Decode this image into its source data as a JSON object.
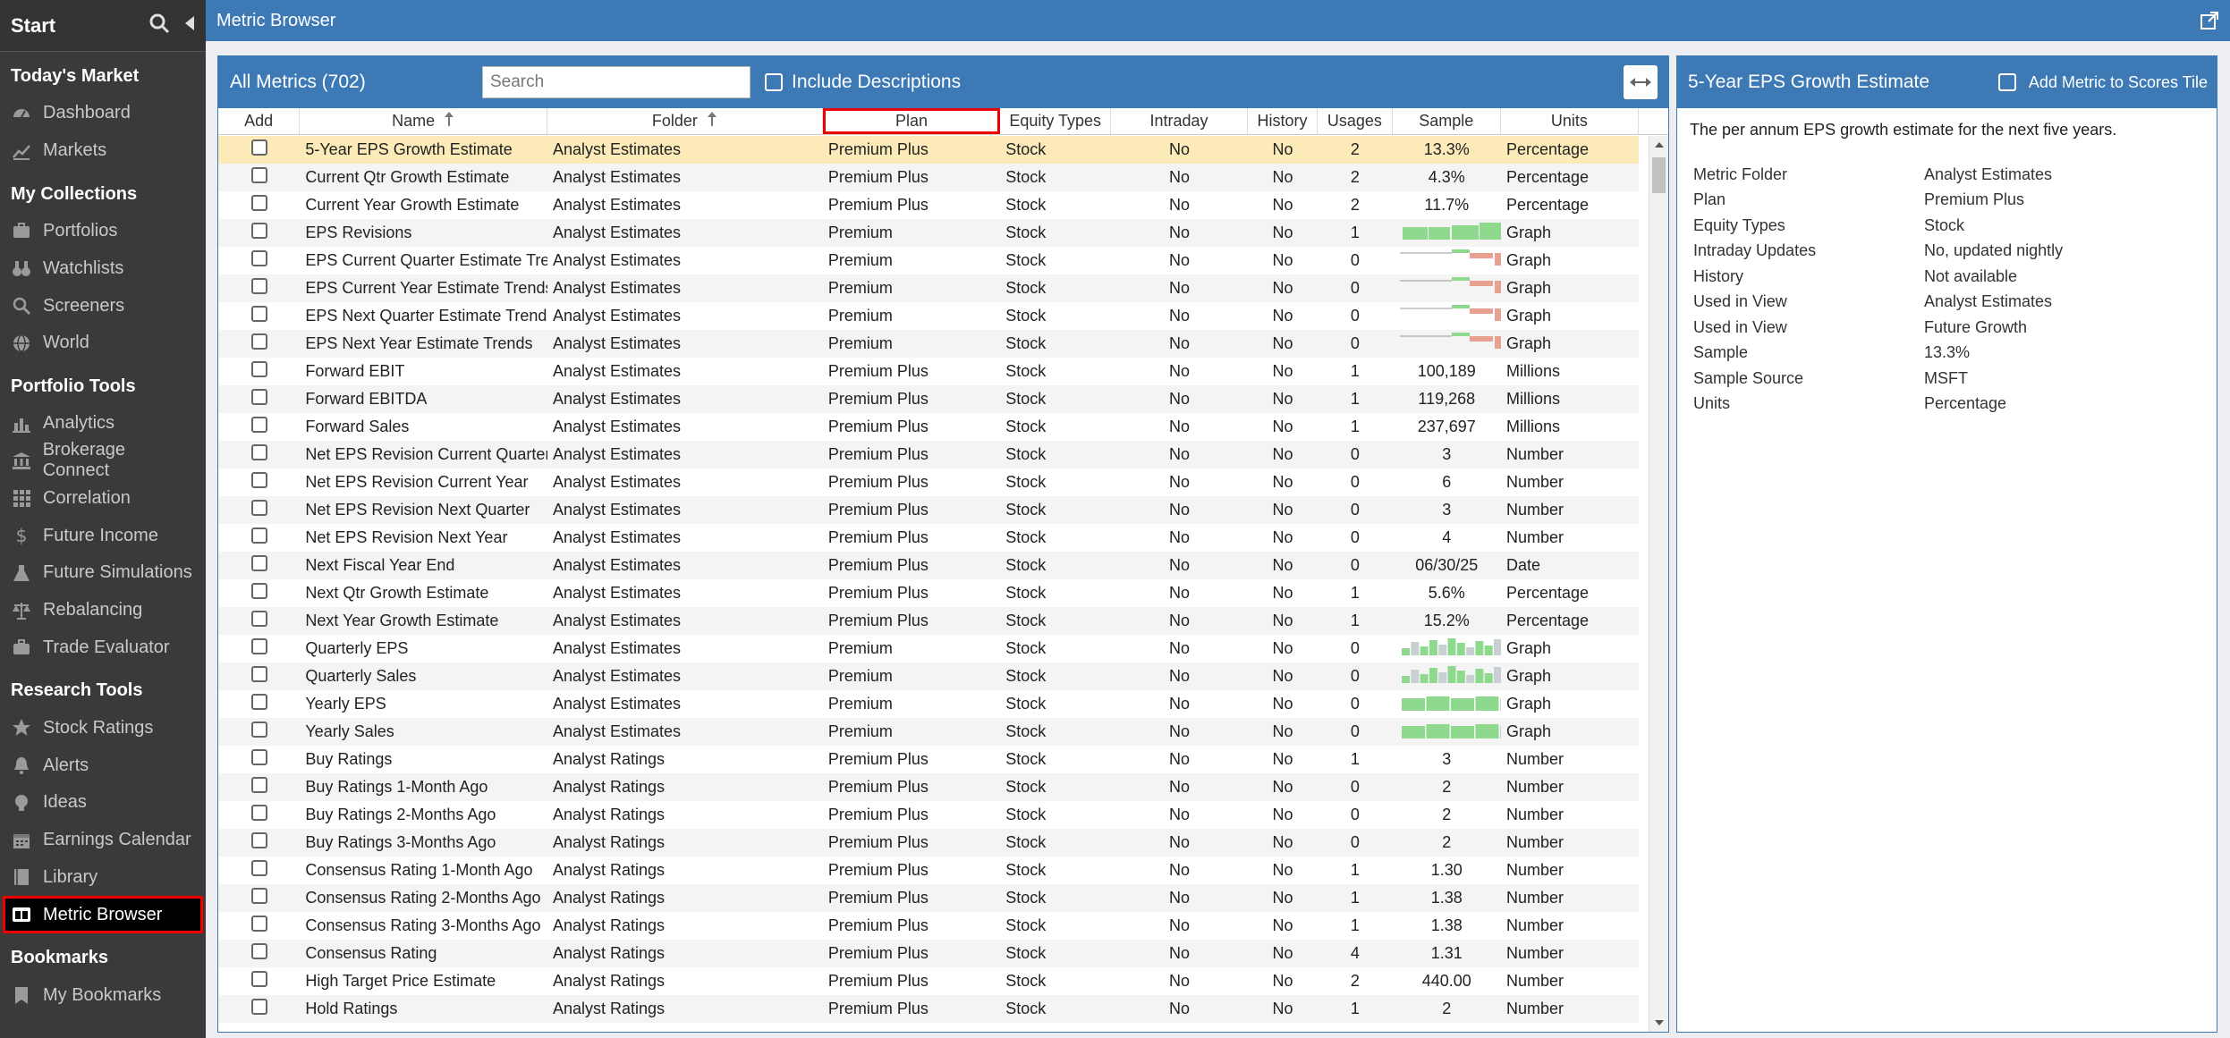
{
  "sidebar": {
    "start": "Start",
    "sections": [
      {
        "title": "Today's Market",
        "items": [
          {
            "label": "Dashboard",
            "icon": "dashboard-icon"
          },
          {
            "label": "Markets",
            "icon": "markets-icon"
          }
        ]
      },
      {
        "title": "My Collections",
        "items": [
          {
            "label": "Portfolios",
            "icon": "portfolios-icon"
          },
          {
            "label": "Watchlists",
            "icon": "binoculars-icon"
          },
          {
            "label": "Screeners",
            "icon": "search-icon"
          },
          {
            "label": "World",
            "icon": "globe-icon"
          }
        ]
      },
      {
        "title": "Portfolio Tools",
        "items": [
          {
            "label": "Analytics",
            "icon": "analytics-icon"
          },
          {
            "label": "Brokerage Connect",
            "icon": "bank-icon"
          },
          {
            "label": "Correlation",
            "icon": "grid-icon"
          },
          {
            "label": "Future Income",
            "icon": "dollar-icon"
          },
          {
            "label": "Future Simulations",
            "icon": "flask-icon"
          },
          {
            "label": "Rebalancing",
            "icon": "scale-icon"
          },
          {
            "label": "Trade Evaluator",
            "icon": "briefcase-icon"
          }
        ]
      },
      {
        "title": "Research Tools",
        "items": [
          {
            "label": "Stock Ratings",
            "icon": "star-icon"
          },
          {
            "label": "Alerts",
            "icon": "bell-icon"
          },
          {
            "label": "Ideas",
            "icon": "lightbulb-icon"
          },
          {
            "label": "Earnings Calendar",
            "icon": "calendar-icon"
          },
          {
            "label": "Library",
            "icon": "library-icon"
          },
          {
            "label": "Metric Browser",
            "icon": "metric-browser-icon",
            "active": true
          }
        ]
      },
      {
        "title": "Bookmarks",
        "items": [
          {
            "label": "My Bookmarks",
            "icon": "bookmark-icon"
          }
        ]
      }
    ]
  },
  "header": {
    "title": "Metric Browser"
  },
  "list": {
    "count_label": "All Metrics (702)",
    "search_placeholder": "Search",
    "include_descriptions": "Include Descriptions",
    "columns": [
      "Add",
      "Name",
      "Folder",
      "Plan",
      "Equity Types",
      "Intraday",
      "History",
      "Usages",
      "Sample",
      "Units"
    ],
    "rows": [
      {
        "name": "5-Year EPS Growth Estimate",
        "folder": "Analyst Estimates",
        "plan": "Premium Plus",
        "equity": "Stock",
        "intraday": "No",
        "history": "No",
        "usages": "2",
        "sample": "13.3%",
        "units": "Percentage",
        "selected": true
      },
      {
        "name": "Current Qtr Growth Estimate",
        "folder": "Analyst Estimates",
        "plan": "Premium Plus",
        "equity": "Stock",
        "intraday": "No",
        "history": "No",
        "usages": "2",
        "sample": "4.3%",
        "units": "Percentage"
      },
      {
        "name": "Current Year Growth Estimate",
        "folder": "Analyst Estimates",
        "plan": "Premium Plus",
        "equity": "Stock",
        "intraday": "No",
        "history": "No",
        "usages": "2",
        "sample": "11.7%",
        "units": "Percentage"
      },
      {
        "name": "EPS Revisions",
        "folder": "Analyst Estimates",
        "plan": "Premium",
        "equity": "Stock",
        "intraday": "No",
        "history": "No",
        "usages": "1",
        "sample": "",
        "spark": "green-bars",
        "units": "Graph"
      },
      {
        "name": "EPS Current Quarter Estimate Trends",
        "folder": "Analyst Estimates",
        "plan": "Premium",
        "equity": "Stock",
        "intraday": "No",
        "history": "No",
        "usages": "0",
        "sample": "",
        "spark": "trend",
        "units": "Graph"
      },
      {
        "name": "EPS Current Year Estimate Trends",
        "folder": "Analyst Estimates",
        "plan": "Premium",
        "equity": "Stock",
        "intraday": "No",
        "history": "No",
        "usages": "0",
        "sample": "",
        "spark": "trend",
        "units": "Graph"
      },
      {
        "name": "EPS Next Quarter Estimate Trends",
        "folder": "Analyst Estimates",
        "plan": "Premium",
        "equity": "Stock",
        "intraday": "No",
        "history": "No",
        "usages": "0",
        "sample": "",
        "spark": "trend",
        "units": "Graph"
      },
      {
        "name": "EPS Next Year Estimate Trends",
        "folder": "Analyst Estimates",
        "plan": "Premium",
        "equity": "Stock",
        "intraday": "No",
        "history": "No",
        "usages": "0",
        "sample": "",
        "spark": "trend",
        "units": "Graph"
      },
      {
        "name": "Forward EBIT",
        "folder": "Analyst Estimates",
        "plan": "Premium Plus",
        "equity": "Stock",
        "intraday": "No",
        "history": "No",
        "usages": "1",
        "sample": "100,189",
        "units": "Millions"
      },
      {
        "name": "Forward EBITDA",
        "folder": "Analyst Estimates",
        "plan": "Premium Plus",
        "equity": "Stock",
        "intraday": "No",
        "history": "No",
        "usages": "1",
        "sample": "119,268",
        "units": "Millions"
      },
      {
        "name": "Forward Sales",
        "folder": "Analyst Estimates",
        "plan": "Premium Plus",
        "equity": "Stock",
        "intraday": "No",
        "history": "No",
        "usages": "1",
        "sample": "237,697",
        "units": "Millions"
      },
      {
        "name": "Net EPS Revision Current Quarter",
        "folder": "Analyst Estimates",
        "plan": "Premium Plus",
        "equity": "Stock",
        "intraday": "No",
        "history": "No",
        "usages": "0",
        "sample": "3",
        "units": "Number"
      },
      {
        "name": "Net EPS Revision Current Year",
        "folder": "Analyst Estimates",
        "plan": "Premium Plus",
        "equity": "Stock",
        "intraday": "No",
        "history": "No",
        "usages": "0",
        "sample": "6",
        "units": "Number"
      },
      {
        "name": "Net EPS Revision Next Quarter",
        "folder": "Analyst Estimates",
        "plan": "Premium Plus",
        "equity": "Stock",
        "intraday": "No",
        "history": "No",
        "usages": "0",
        "sample": "3",
        "units": "Number"
      },
      {
        "name": "Net EPS Revision Next Year",
        "folder": "Analyst Estimates",
        "plan": "Premium Plus",
        "equity": "Stock",
        "intraday": "No",
        "history": "No",
        "usages": "0",
        "sample": "4",
        "units": "Number"
      },
      {
        "name": "Next Fiscal Year End",
        "folder": "Analyst Estimates",
        "plan": "Premium Plus",
        "equity": "Stock",
        "intraday": "No",
        "history": "No",
        "usages": "0",
        "sample": "06/30/25",
        "units": "Date"
      },
      {
        "name": "Next Qtr Growth Estimate",
        "folder": "Analyst Estimates",
        "plan": "Premium Plus",
        "equity": "Stock",
        "intraday": "No",
        "history": "No",
        "usages": "1",
        "sample": "5.6%",
        "units": "Percentage"
      },
      {
        "name": "Next Year Growth Estimate",
        "folder": "Analyst Estimates",
        "plan": "Premium Plus",
        "equity": "Stock",
        "intraday": "No",
        "history": "No",
        "usages": "1",
        "sample": "15.2%",
        "units": "Percentage"
      },
      {
        "name": "Quarterly EPS",
        "folder": "Analyst Estimates",
        "plan": "Premium",
        "equity": "Stock",
        "intraday": "No",
        "history": "No",
        "usages": "0",
        "sample": "",
        "spark": "mixed-bars",
        "units": "Graph"
      },
      {
        "name": "Quarterly Sales",
        "folder": "Analyst Estimates",
        "plan": "Premium",
        "equity": "Stock",
        "intraday": "No",
        "history": "No",
        "usages": "0",
        "sample": "",
        "spark": "mixed-bars",
        "units": "Graph"
      },
      {
        "name": "Yearly EPS",
        "folder": "Analyst Estimates",
        "plan": "Premium",
        "equity": "Stock",
        "intraday": "No",
        "history": "No",
        "usages": "0",
        "sample": "",
        "spark": "year-bars",
        "units": "Graph"
      },
      {
        "name": "Yearly Sales",
        "folder": "Analyst Estimates",
        "plan": "Premium",
        "equity": "Stock",
        "intraday": "No",
        "history": "No",
        "usages": "0",
        "sample": "",
        "spark": "year-bars",
        "units": "Graph"
      },
      {
        "name": "Buy Ratings",
        "folder": "Analyst Ratings",
        "plan": "Premium Plus",
        "equity": "Stock",
        "intraday": "No",
        "history": "No",
        "usages": "1",
        "sample": "3",
        "units": "Number"
      },
      {
        "name": "Buy Ratings 1-Month Ago",
        "folder": "Analyst Ratings",
        "plan": "Premium Plus",
        "equity": "Stock",
        "intraday": "No",
        "history": "No",
        "usages": "0",
        "sample": "2",
        "units": "Number"
      },
      {
        "name": "Buy Ratings 2-Months Ago",
        "folder": "Analyst Ratings",
        "plan": "Premium Plus",
        "equity": "Stock",
        "intraday": "No",
        "history": "No",
        "usages": "0",
        "sample": "2",
        "units": "Number"
      },
      {
        "name": "Buy Ratings 3-Months Ago",
        "folder": "Analyst Ratings",
        "plan": "Premium Plus",
        "equity": "Stock",
        "intraday": "No",
        "history": "No",
        "usages": "0",
        "sample": "2",
        "units": "Number"
      },
      {
        "name": "Consensus Rating 1-Month Ago",
        "folder": "Analyst Ratings",
        "plan": "Premium Plus",
        "equity": "Stock",
        "intraday": "No",
        "history": "No",
        "usages": "1",
        "sample": "1.30",
        "units": "Number"
      },
      {
        "name": "Consensus Rating 2-Months Ago",
        "folder": "Analyst Ratings",
        "plan": "Premium Plus",
        "equity": "Stock",
        "intraday": "No",
        "history": "No",
        "usages": "1",
        "sample": "1.38",
        "units": "Number"
      },
      {
        "name": "Consensus Rating 3-Months Ago",
        "folder": "Analyst Ratings",
        "plan": "Premium Plus",
        "equity": "Stock",
        "intraday": "No",
        "history": "No",
        "usages": "1",
        "sample": "1.38",
        "units": "Number"
      },
      {
        "name": "Consensus Rating",
        "folder": "Analyst Ratings",
        "plan": "Premium Plus",
        "equity": "Stock",
        "intraday": "No",
        "history": "No",
        "usages": "4",
        "sample": "1.31",
        "units": "Number"
      },
      {
        "name": "High Target Price Estimate",
        "folder": "Analyst Ratings",
        "plan": "Premium Plus",
        "equity": "Stock",
        "intraday": "No",
        "history": "No",
        "usages": "2",
        "sample": "440.00",
        "units": "Number"
      },
      {
        "name": "Hold Ratings",
        "folder": "Analyst Ratings",
        "plan": "Premium Plus",
        "equity": "Stock",
        "intraday": "No",
        "history": "No",
        "usages": "1",
        "sample": "2",
        "units": "Number"
      }
    ]
  },
  "detail": {
    "title": "5-Year EPS Growth Estimate",
    "add_label": "Add Metric to Scores Tile",
    "description": "The per annum EPS growth estimate for the next five years.",
    "fields": [
      {
        "k": "Metric Folder",
        "v": "Analyst Estimates"
      },
      {
        "k": "Plan",
        "v": "Premium Plus"
      },
      {
        "k": "Equity Types",
        "v": "Stock"
      },
      {
        "k": "Intraday Updates",
        "v": "No, updated nightly"
      },
      {
        "k": "History",
        "v": "Not available"
      },
      {
        "k": "Used in View",
        "v": "Analyst Estimates"
      },
      {
        "k": "Used in View",
        "v": "Future Growth"
      },
      {
        "k": "Sample",
        "v": "13.3%"
      },
      {
        "k": "Sample Source",
        "v": "MSFT"
      },
      {
        "k": "Units",
        "v": "Percentage"
      }
    ]
  },
  "colors": {
    "accent": "#3d79b5",
    "selected_row": "#fcebb8",
    "highlight": "#e00000",
    "spark_green": "#8fd98f",
    "spark_red": "#e8a090",
    "spark_gray": "#c8d0d3"
  }
}
